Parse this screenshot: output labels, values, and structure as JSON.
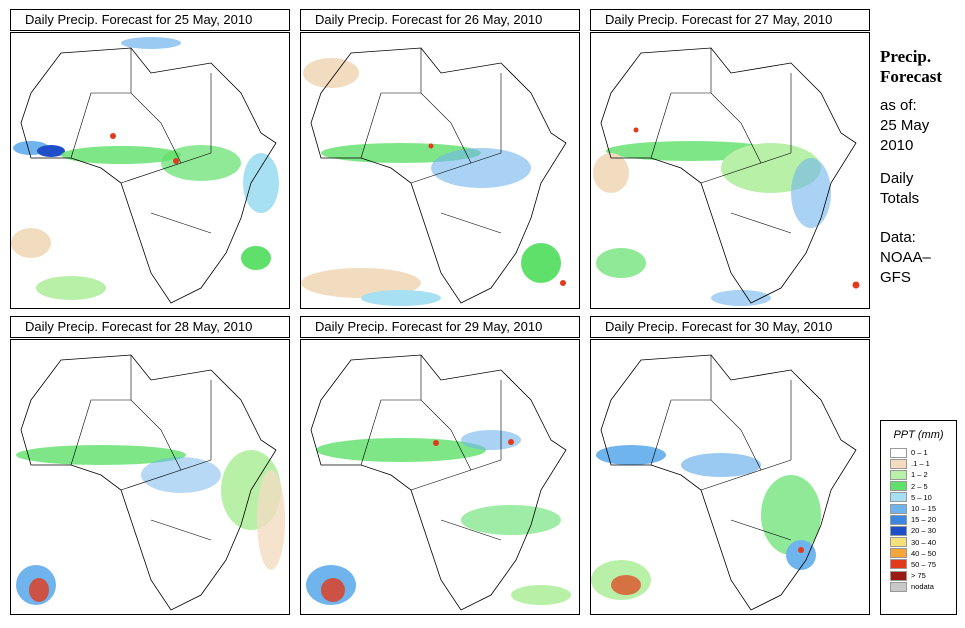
{
  "panels": [
    {
      "title": "Daily Precip. Forecast for  25 May, 2010"
    },
    {
      "title": "Daily Precip. Forecast for  26 May, 2010"
    },
    {
      "title": "Daily Precip. Forecast for  27 May, 2010"
    },
    {
      "title": "Daily Precip. Forecast for  28 May, 2010"
    },
    {
      "title": "Daily Precip. Forecast for  29 May, 2010"
    },
    {
      "title": "Daily Precip. Forecast for  30 May, 2010"
    }
  ],
  "side": {
    "title_line1": "Precip.",
    "title_line2": "Forecast",
    "asof_label": "as of:",
    "asof_date_line1": "25 May",
    "asof_date_line2": "2010",
    "totals_line1": "Daily",
    "totals_line2": "Totals",
    "data_line1": "Data:",
    "data_line2": "NOAA–",
    "data_line3": "GFS"
  },
  "legend": {
    "title": "PPT (mm)",
    "items": [
      {
        "label": "0 – 1",
        "color": "#ffffff"
      },
      {
        "label": ".1 – 1",
        "color": "#f2dcc0"
      },
      {
        "label": "1 – 2",
        "color": "#b8f0a8"
      },
      {
        "label": "2 – 5",
        "color": "#5fe06a"
      },
      {
        "label": "5 – 10",
        "color": "#a7e0f2"
      },
      {
        "label": "10 – 15",
        "color": "#6fb4ec"
      },
      {
        "label": "15 – 20",
        "color": "#3d86e0"
      },
      {
        "label": "20 – 30",
        "color": "#1f4fc8"
      },
      {
        "label": "30 – 40",
        "color": "#f6e07a"
      },
      {
        "label": "40 – 50",
        "color": "#f6a53a"
      },
      {
        "label": "50 – 75",
        "color": "#e23a1a"
      },
      {
        "label": "> 75",
        "color": "#9a1a14"
      },
      {
        "label": "nodata",
        "color": "#c8c8c8"
      }
    ]
  }
}
